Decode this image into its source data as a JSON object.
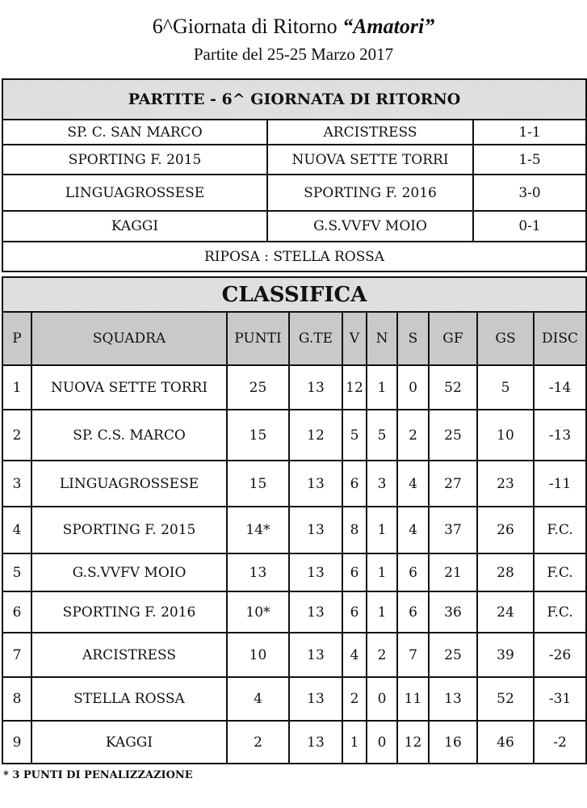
{
  "header": {
    "title_prefix": "6^Giornata di Ritorno ",
    "title_emph": "“Amatori”",
    "subtitle": "Partite del 25-25 Marzo 2017"
  },
  "matches": {
    "title": "PARTITE - 6^ GIORNATA DI RITORNO",
    "rows": [
      [
        "SP. C. SAN MARCO",
        "ARCISTRESS",
        "1-1"
      ],
      [
        "SPORTING F. 2015",
        "NUOVA SETTE TORRI",
        "1-5"
      ],
      [
        "LINGUAGROSSESE",
        "SPORTING F. 2016",
        "3-0"
      ],
      [
        "KAGGI",
        "G.S.VVFV MOIO",
        "0-1"
      ]
    ],
    "rest": "RIPOSA :  STELLA ROSSA"
  },
  "standings": {
    "title": "CLASSIFICA",
    "columns": [
      "P",
      "SQUADRA",
      "PUNTI",
      "G.TE",
      "V",
      "N",
      "S",
      "GF",
      "GS",
      "DISC"
    ],
    "rows": [
      [
        "1",
        "NUOVA SETTE TORRI",
        "25",
        "13",
        "12",
        "1",
        "0",
        "52",
        "5",
        "-14"
      ],
      [
        "2",
        "SP. C.S. MARCO",
        "15",
        "12",
        "5",
        "5",
        "2",
        "25",
        "10",
        "-13"
      ],
      [
        "3",
        "LINGUAGROSSESE",
        "15",
        "13",
        "6",
        "3",
        "4",
        "27",
        "23",
        "-11"
      ],
      [
        "4",
        "SPORTING F. 2015",
        "14*",
        "13",
        "8",
        "1",
        "4",
        "37",
        "26",
        "F.C."
      ],
      [
        "5",
        "G.S.VVFV MOIO",
        "13",
        "13",
        "6",
        "1",
        "6",
        "21",
        "28",
        "F.C."
      ],
      [
        "6",
        "SPORTING F. 2016",
        "10*",
        "13",
        "6",
        "1",
        "6",
        "36",
        "24",
        "F.C."
      ],
      [
        "7",
        "ARCISTRESS",
        "10",
        "13",
        "4",
        "2",
        "7",
        "25",
        "39",
        "-26"
      ],
      [
        "8",
        "STELLA ROSSA",
        "4",
        "13",
        "2",
        "0",
        "11",
        "13",
        "52",
        "-31"
      ],
      [
        "9",
        "KAGGI",
        "2",
        "13",
        "1",
        "0",
        "12",
        "16",
        "46",
        "-2"
      ]
    ]
  },
  "footnote": "* 3 PUNTI DI PENALIZZAZIONE"
}
